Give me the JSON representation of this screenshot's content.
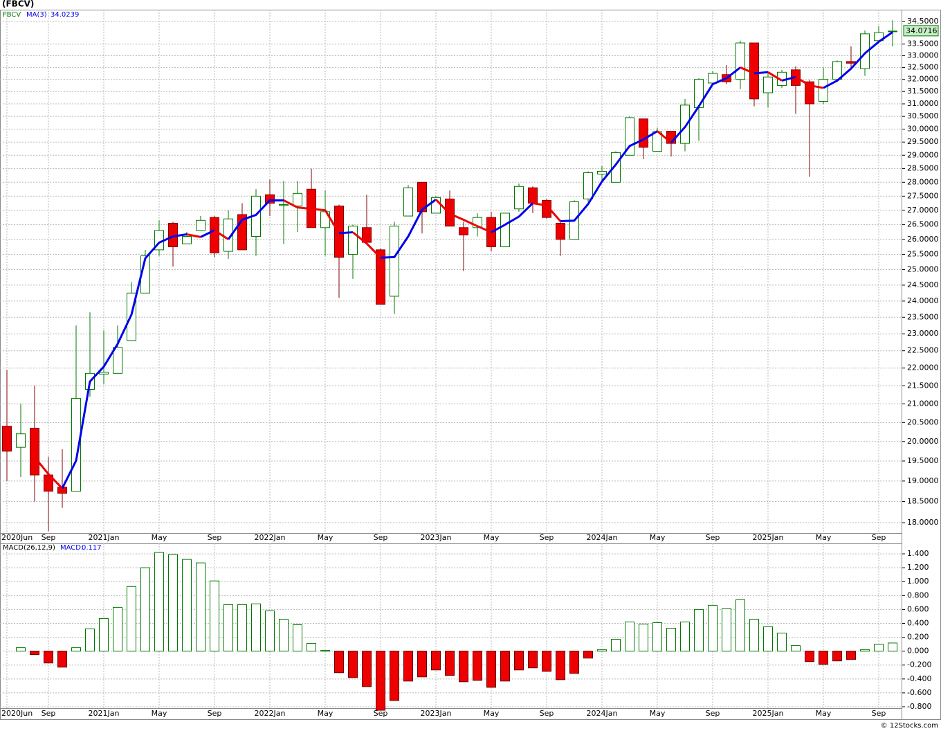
{
  "chart_data": [
    {
      "type": "candlestick",
      "title": "(FBCV)",
      "symbol": "FBCV",
      "categories": [
        "2020Jun",
        null,
        null,
        "Sep",
        null,
        null,
        null,
        "2021Jan",
        null,
        null,
        null,
        "May",
        null,
        null,
        null,
        "Sep",
        null,
        null,
        null,
        "2022Jan",
        null,
        null,
        null,
        "May",
        null,
        null,
        null,
        "Sep",
        null,
        null,
        null,
        "2023Jan",
        null,
        null,
        null,
        "May",
        null,
        null,
        null,
        "Sep",
        null,
        null,
        null,
        "2024Jan",
        null,
        null,
        null,
        "May",
        null,
        null,
        null,
        "Sep",
        null,
        null,
        null,
        "2025Jan",
        null,
        null,
        null,
        "May",
        null,
        null,
        null,
        "Sep",
        null
      ],
      "open": [
        20.4,
        19.85,
        20.35,
        19.15,
        18.85,
        18.75,
        21.4,
        21.83,
        21.85,
        22.8,
        24.25,
        25.65,
        26.55,
        25.85,
        26.3,
        26.75,
        25.6,
        26.85,
        26.1,
        27.55,
        27.17,
        27.15,
        27.75,
        26.4,
        27.15,
        25.5,
        26.4,
        25.65,
        24.15,
        26.8,
        28.0,
        26.9,
        27.4,
        26.4,
        26.4,
        26.75,
        25.75,
        27.05,
        27.8,
        27.35,
        26.55,
        26.0,
        27.4,
        28.3,
        28.0,
        29.0,
        30.4,
        29.15,
        29.92,
        29.45,
        30.85,
        31.85,
        32.2,
        32.0,
        33.55,
        31.45,
        31.75,
        32.4,
        31.9,
        31.1,
        32.0,
        32.75,
        32.45,
        33.65,
        34.05
      ],
      "high": [
        21.95,
        21.0,
        21.5,
        19.6,
        19.8,
        23.25,
        23.65,
        23.1,
        23.25,
        24.6,
        25.65,
        26.65,
        26.6,
        26.25,
        26.8,
        26.8,
        27.0,
        27.25,
        27.75,
        28.1,
        28.05,
        28.05,
        28.5,
        27.7,
        27.2,
        26.5,
        27.55,
        25.7,
        26.6,
        27.9,
        28.0,
        27.5,
        27.7,
        26.6,
        26.9,
        26.95,
        26.9,
        27.95,
        27.85,
        27.4,
        26.6,
        27.35,
        28.4,
        28.6,
        29.15,
        30.5,
        30.4,
        30.05,
        29.92,
        31.2,
        32.05,
        32.35,
        32.6,
        33.65,
        33.55,
        32.25,
        32.4,
        32.55,
        31.98,
        32.5,
        32.8,
        33.4,
        34.1,
        34.3,
        34.55
      ],
      "low": [
        19.0,
        19.1,
        18.5,
        17.8,
        18.35,
        18.75,
        21.2,
        21.55,
        21.85,
        22.8,
        24.25,
        25.45,
        25.1,
        25.85,
        26.3,
        25.4,
        25.35,
        25.65,
        25.45,
        26.8,
        25.85,
        26.25,
        26.4,
        25.45,
        24.1,
        24.7,
        25.9,
        23.9,
        23.6,
        26.8,
        26.2,
        26.9,
        26.45,
        24.95,
        26.1,
        25.6,
        25.75,
        26.95,
        26.9,
        26.7,
        25.45,
        26.0,
        27.3,
        28.0,
        28.0,
        29.0,
        28.85,
        29.15,
        28.95,
        29.15,
        29.55,
        31.8,
        31.8,
        31.6,
        30.9,
        30.85,
        31.65,
        30.6,
        28.2,
        31.0,
        31.98,
        32.45,
        32.15,
        33.6,
        33.4
      ],
      "close": [
        19.75,
        20.2,
        19.15,
        18.75,
        18.7,
        21.15,
        21.85,
        21.88,
        22.6,
        24.25,
        25.45,
        26.3,
        25.75,
        26.1,
        26.65,
        25.55,
        26.7,
        25.65,
        27.5,
        27.25,
        27.2,
        27.6,
        26.4,
        26.95,
        25.4,
        26.45,
        25.9,
        23.9,
        26.45,
        27.8,
        26.95,
        27.45,
        26.45,
        26.15,
        26.75,
        25.75,
        26.9,
        27.85,
        27.25,
        26.75,
        26.0,
        27.3,
        28.35,
        28.4,
        29.1,
        30.45,
        29.3,
        29.9,
        29.45,
        30.95,
        32.0,
        32.25,
        31.9,
        33.55,
        31.2,
        32.1,
        32.3,
        31.75,
        31.0,
        32.0,
        32.75,
        32.68,
        33.95,
        34.0,
        34.0716
      ],
      "up_color": "#007800",
      "down_color": "#ee0000",
      "ma": {
        "name": "MA(3)",
        "color": "#0000ee",
        "down_color": "#ee0000",
        "values": [
          null,
          null,
          19.6,
          19.17,
          18.82,
          19.51,
          21.62,
          22.04,
          22.7,
          23.58,
          25.37,
          25.89,
          26.1,
          26.17,
          26.08,
          26.31,
          26.0,
          26.67,
          26.84,
          27.35,
          27.35,
          27.1,
          27.05,
          27.0,
          26.21,
          26.24,
          25.86,
          25.39,
          25.41,
          26.1,
          27.02,
          27.38,
          26.88,
          26.67,
          26.45,
          26.24,
          26.5,
          26.78,
          27.25,
          27.17,
          26.62,
          26.64,
          27.22,
          28.03,
          28.65,
          29.35,
          29.6,
          29.92,
          29.48,
          30.08,
          30.9,
          31.8,
          32.05,
          32.5,
          32.25,
          32.3,
          31.95,
          32.1,
          31.75,
          31.65,
          31.95,
          32.45,
          33.1,
          33.6,
          34.0239
        ]
      },
      "log_scale": true,
      "grid": true,
      "ylim": [
        17.76,
        35.03
      ],
      "yticks": [
        {
          "value": 18,
          "label": "18.0000"
        },
        {
          "value": 18.5,
          "label": "18.5000"
        },
        {
          "value": 19,
          "label": "19.0000"
        },
        {
          "value": 19.5,
          "label": "19.5000"
        },
        {
          "value": 20,
          "label": "20.0000"
        },
        {
          "value": 20.5,
          "label": "20.5000"
        },
        {
          "value": 21,
          "label": "21.0000"
        },
        {
          "value": 21.5,
          "label": "21.5000"
        },
        {
          "value": 22,
          "label": "22.0000"
        },
        {
          "value": 22.5,
          "label": "22.5000"
        },
        {
          "value": 23,
          "label": "23.0000"
        },
        {
          "value": 23.5,
          "label": "23.5000"
        },
        {
          "value": 24,
          "label": "24.0000"
        },
        {
          "value": 24.5,
          "label": "24.5000"
        },
        {
          "value": 25,
          "label": "25.0000"
        },
        {
          "value": 25.5,
          "label": "25.5000"
        },
        {
          "value": 26,
          "label": "26.0000"
        },
        {
          "value": 26.5,
          "label": "26.5000"
        },
        {
          "value": 27,
          "label": "27.0000"
        },
        {
          "value": 27.5,
          "label": "27.5000"
        },
        {
          "value": 28,
          "label": "28.0000"
        },
        {
          "value": 28.5,
          "label": "28.5000"
        },
        {
          "value": 29,
          "label": "29.0000"
        },
        {
          "value": 29.5,
          "label": "29.5000"
        },
        {
          "value": 30,
          "label": "30.0000"
        },
        {
          "value": 30.5,
          "label": "30.5000"
        },
        {
          "value": 31,
          "label": "31.0000"
        },
        {
          "value": 31.5,
          "label": "31.5000"
        },
        {
          "value": 32,
          "label": "32.0000"
        },
        {
          "value": 32.5,
          "label": "32.5000"
        },
        {
          "value": 33,
          "label": "33.0000"
        },
        {
          "value": 33.5,
          "label": "33.5000"
        },
        {
          "value": 34.5,
          "label": "34.5000"
        }
      ]
    },
    {
      "type": "bar",
      "name": "MACD(26,12,9)",
      "value_name": "MACD:",
      "categories": [
        "2020Jun",
        null,
        null,
        "Sep",
        null,
        null,
        null,
        "2021Jan",
        null,
        null,
        null,
        "May",
        null,
        null,
        null,
        "Sep",
        null,
        null,
        null,
        "2022Jan",
        null,
        null,
        null,
        "May",
        null,
        null,
        null,
        "Sep",
        null,
        null,
        null,
        "2023Jan",
        null,
        null,
        null,
        "May",
        null,
        null,
        null,
        "Sep",
        null,
        null,
        null,
        "2024Jan",
        null,
        null,
        null,
        "May",
        null,
        null,
        null,
        "Sep",
        null,
        null,
        null,
        "2025Jan",
        null,
        null,
        null,
        "May",
        null,
        null,
        null,
        "Sep",
        null
      ],
      "values": [
        null,
        0.05,
        -0.05,
        -0.17,
        -0.23,
        0.05,
        0.32,
        0.47,
        0.63,
        0.93,
        1.2,
        1.42,
        1.39,
        1.32,
        1.27,
        1.01,
        0.67,
        0.67,
        0.68,
        0.58,
        0.46,
        0.38,
        0.11,
        0.01,
        -0.31,
        -0.38,
        -0.51,
        -0.85,
        -0.71,
        -0.43,
        -0.37,
        -0.27,
        -0.35,
        -0.44,
        -0.42,
        -0.52,
        -0.43,
        -0.27,
        -0.24,
        -0.29,
        -0.41,
        -0.32,
        -0.1,
        0.02,
        0.17,
        0.42,
        0.39,
        0.41,
        0.33,
        0.42,
        0.6,
        0.66,
        0.61,
        0.74,
        0.46,
        0.35,
        0.26,
        0.08,
        -0.15,
        -0.19,
        -0.14,
        -0.12,
        0.02,
        0.1,
        0.117
      ],
      "up_color": "#007800",
      "down_color": "#ee0000",
      "grid": true,
      "ylim": [
        -0.82,
        1.55
      ],
      "yticks": [
        {
          "value": 1.4,
          "label": "1.400"
        },
        {
          "value": 1.2,
          "label": "1.200"
        },
        {
          "value": 1,
          "label": "1.000"
        },
        {
          "value": 0.8,
          "label": "0.800"
        },
        {
          "value": 0.6,
          "label": "0.600"
        },
        {
          "value": 0.4,
          "label": "0.400"
        },
        {
          "value": 0.2,
          "label": "0.200"
        },
        {
          "value": 0,
          "label": "0.000"
        },
        {
          "value": -0.2,
          "label": "-0.200"
        },
        {
          "value": -0.4,
          "label": "-0.400"
        },
        {
          "value": -0.6,
          "label": "-0.600"
        },
        {
          "value": -0.8,
          "label": "-0.800"
        }
      ]
    }
  ],
  "footer": "© 12Stocks.com"
}
